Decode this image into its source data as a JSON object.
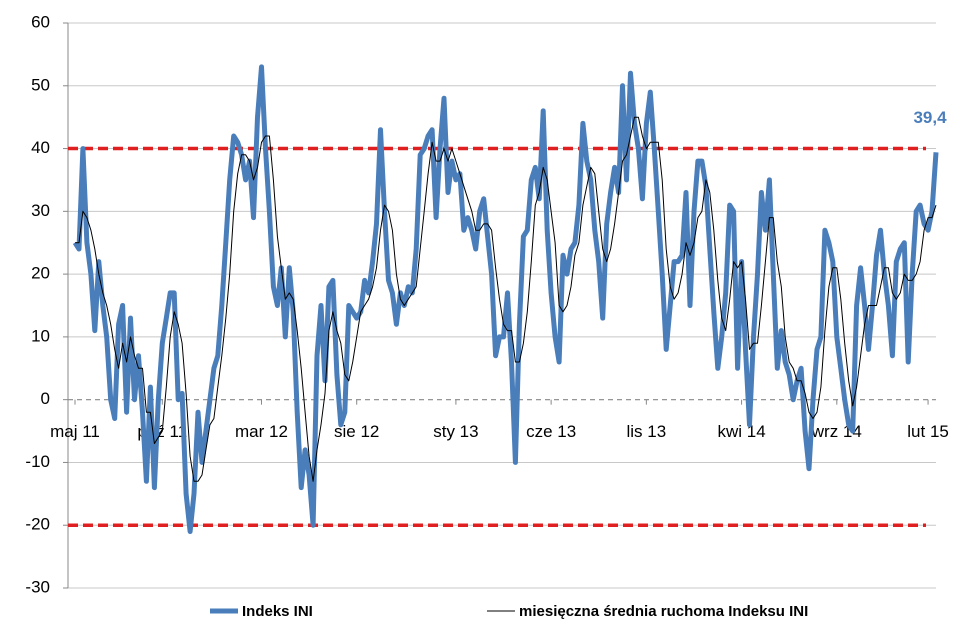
{
  "chart_data": {
    "type": "line",
    "categories": [
      "maj 11",
      null,
      null,
      null,
      null,
      null,
      null,
      null,
      null,
      null,
      null,
      null,
      null,
      null,
      null,
      null,
      null,
      null,
      null,
      null,
      null,
      null,
      "paź 11",
      null,
      null,
      null,
      null,
      null,
      null,
      null,
      null,
      null,
      null,
      null,
      null,
      null,
      null,
      null,
      null,
      null,
      null,
      null,
      null,
      null,
      null,
      null,
      null,
      "mar 12",
      null,
      null,
      null,
      null,
      null,
      null,
      null,
      null,
      null,
      null,
      null,
      null,
      null,
      null,
      null,
      null,
      null,
      null,
      null,
      null,
      null,
      null,
      null,
      "sie 12",
      null,
      null,
      null,
      null,
      null,
      null,
      null,
      null,
      null,
      null,
      null,
      null,
      null,
      null,
      null,
      null,
      null,
      null,
      null,
      null,
      null,
      null,
      null,
      null,
      "sty 13",
      null,
      null,
      null,
      null,
      null,
      null,
      null,
      null,
      null,
      null,
      null,
      null,
      null,
      null,
      null,
      null,
      null,
      null,
      null,
      null,
      null,
      null,
      null,
      "cze 13",
      null,
      null,
      null,
      null,
      null,
      null,
      null,
      null,
      null,
      null,
      null,
      null,
      null,
      null,
      null,
      null,
      null,
      null,
      null,
      null,
      null,
      null,
      null,
      "lis 13",
      null,
      null,
      null,
      null,
      null,
      null,
      null,
      null,
      null,
      null,
      null,
      null,
      null,
      null,
      null,
      null,
      null,
      null,
      null,
      null,
      null,
      null,
      null,
      "kwi 14",
      null,
      null,
      null,
      null,
      null,
      null,
      null,
      null,
      null,
      null,
      null,
      null,
      null,
      null,
      null,
      null,
      null,
      null,
      null,
      null,
      null,
      null,
      null,
      "wrz 14",
      null,
      null,
      null,
      null,
      null,
      null,
      null,
      null,
      null,
      null,
      null,
      null,
      null,
      null,
      null,
      null,
      null,
      null,
      null,
      null,
      null,
      null,
      "lut 15",
      null,
      null
    ],
    "series": [
      {
        "name": "Indeks INI",
        "color": "#4a7ebb",
        "width": 5,
        "values": [
          25,
          24,
          40,
          25,
          20,
          11,
          22,
          15,
          10,
          0,
          -3,
          12,
          15,
          -2,
          13,
          0,
          7,
          -2,
          -13,
          2,
          -14,
          0,
          9,
          13,
          17,
          17,
          0,
          1,
          -15,
          -21,
          -15,
          -2,
          -10,
          -5,
          0,
          5,
          7,
          15,
          25,
          35,
          42,
          41,
          39,
          35,
          38,
          29,
          45,
          53,
          40,
          30,
          18,
          15,
          21,
          10,
          21,
          14,
          -2,
          -14,
          -8,
          -12,
          -20,
          7,
          15,
          3,
          18,
          19,
          4,
          -4,
          -2,
          15,
          14,
          13,
          14,
          19,
          17,
          22,
          28,
          43,
          30,
          19,
          17,
          12,
          17,
          15,
          18,
          17,
          24,
          39,
          40,
          42,
          43,
          29,
          40,
          48,
          33,
          38,
          35,
          36,
          27,
          29,
          27,
          24,
          30,
          32,
          26,
          20,
          7,
          10,
          10,
          17,
          6,
          -10,
          12,
          26,
          27,
          35,
          37,
          32,
          46,
          27,
          17,
          10,
          6,
          23,
          20,
          24,
          25,
          31,
          44,
          38,
          35,
          27,
          22,
          13,
          28,
          33,
          37,
          33,
          50,
          35,
          52,
          44,
          40,
          32,
          44,
          49,
          40,
          30,
          20,
          8,
          15,
          22,
          22,
          23,
          33,
          15,
          30,
          38,
          38,
          34,
          24,
          14,
          5,
          10,
          17,
          31,
          30,
          5,
          22,
          8,
          -4,
          10,
          20,
          33,
          27,
          35,
          20,
          5,
          11,
          6,
          4,
          0,
          3,
          5,
          -5,
          -11,
          0,
          8,
          10,
          27,
          25,
          22,
          10,
          5,
          0,
          -4,
          -5,
          15,
          21,
          15,
          8,
          15,
          23,
          27,
          20,
          15,
          7,
          22,
          24,
          25,
          6,
          20,
          30,
          31,
          28,
          27,
          30,
          39.4
        ],
        "value_labels": [
          null,
          null,
          null,
          null,
          null,
          null,
          null,
          null,
          null,
          null,
          null,
          null,
          null,
          null,
          null,
          null,
          null,
          null,
          null,
          null,
          null,
          null,
          null,
          null,
          null,
          null,
          null,
          null,
          null,
          null,
          null,
          null,
          null,
          null,
          null,
          null,
          null,
          null,
          null,
          null,
          null,
          null,
          null,
          null,
          null,
          null,
          null,
          null,
          null,
          null,
          null,
          null,
          null,
          null,
          null,
          null,
          null,
          null,
          null,
          null,
          null,
          null,
          null,
          null,
          null,
          null,
          null,
          null,
          null,
          null,
          null,
          null,
          null,
          null,
          null,
          null,
          null,
          null,
          null,
          null,
          null,
          null,
          null,
          null,
          null,
          null,
          null,
          null,
          null,
          null,
          null,
          null,
          null,
          null,
          null,
          null,
          null,
          null,
          null,
          null,
          null,
          null,
          null,
          null,
          null,
          null,
          null,
          null,
          null,
          null,
          null,
          null,
          null,
          null,
          null,
          null,
          null,
          null,
          null,
          null,
          null,
          null,
          null,
          null,
          null,
          null,
          null,
          null,
          null,
          null,
          null,
          null,
          null,
          null,
          null,
          null,
          null,
          null,
          null,
          null,
          null,
          null,
          null,
          null,
          null,
          null,
          null,
          null,
          null,
          null,
          null,
          null,
          null,
          null,
          null,
          null,
          null,
          null,
          null,
          null,
          null,
          null,
          null,
          null,
          null,
          null,
          null,
          null,
          null,
          null,
          null,
          null,
          null,
          null,
          null,
          null,
          null,
          null,
          null,
          null,
          null,
          null,
          null,
          null,
          null,
          null,
          null,
          null,
          null,
          null,
          null,
          null,
          null,
          null,
          null,
          null,
          null,
          null,
          null,
          null,
          null,
          null,
          null,
          null,
          null,
          null,
          null,
          null,
          null,
          null,
          null,
          null,
          null,
          null,
          null,
          null,
          null,
          "39,4"
        ]
      },
      {
        "name": "miesięczna średnia ruchoma Indeksu INI",
        "color": "#000000",
        "width": 1,
        "values": [
          25,
          25,
          30,
          29,
          27,
          24,
          20,
          17,
          15,
          12,
          8,
          5,
          9,
          6,
          10,
          7,
          5,
          5,
          -2,
          -2,
          -7,
          -6,
          -5,
          2,
          10,
          14,
          12,
          9,
          1,
          -9,
          -13,
          -13,
          -12,
          -8,
          -4,
          -3,
          2,
          7,
          13,
          20,
          30,
          36,
          39,
          39,
          38,
          35,
          37,
          41,
          42,
          42,
          35,
          26,
          21,
          16,
          17,
          16,
          11,
          5,
          -2,
          -9,
          -13,
          -8,
          -4,
          1,
          11,
          14,
          11,
          9,
          4,
          3,
          6,
          10,
          14,
          15,
          16,
          18,
          21,
          27,
          31,
          30,
          27,
          20,
          16,
          15,
          16,
          17,
          18,
          24,
          30,
          36,
          41,
          38,
          38,
          40,
          38,
          40,
          38,
          36,
          34,
          32,
          30,
          27,
          27,
          28,
          28,
          27,
          21,
          16,
          12,
          11,
          11,
          6,
          6,
          9,
          14,
          22,
          31,
          33,
          37,
          35,
          30,
          25,
          15,
          14,
          15,
          18,
          23,
          25,
          31,
          34,
          37,
          36,
          30,
          24,
          22,
          24,
          28,
          33,
          38,
          39,
          42,
          45,
          45,
          42,
          40,
          41,
          41,
          41,
          35,
          24,
          18,
          16,
          17,
          20,
          25,
          23,
          25,
          29,
          30,
          35,
          33,
          27,
          19,
          13,
          11,
          16,
          22,
          21,
          22,
          16,
          8,
          9,
          9,
          15,
          22,
          29,
          29,
          22,
          18,
          10,
          6,
          5,
          3,
          3,
          1,
          -2,
          -3,
          -2,
          2,
          11,
          18,
          21,
          21,
          16,
          9,
          3,
          -1,
          2,
          7,
          12,
          15,
          15,
          15,
          18,
          21,
          21,
          17,
          16,
          17,
          20,
          19,
          19,
          20,
          22,
          27,
          29,
          29,
          31
        ]
      }
    ],
    "reference_lines": [
      {
        "value": 40,
        "color": "#e02020"
      },
      {
        "value": -20,
        "color": "#e02020"
      }
    ],
    "ylim": [
      -30,
      60
    ],
    "yticks": [
      -30,
      -20,
      -10,
      0,
      10,
      20,
      30,
      40,
      50,
      60
    ],
    "grid": true
  }
}
